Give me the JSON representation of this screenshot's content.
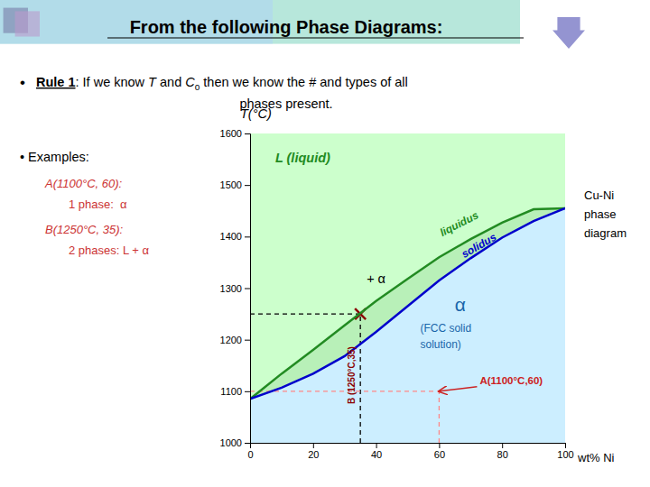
{
  "chart_data": {
    "type": "line",
    "title": "From the following Phase Diagrams:",
    "xlabel": "wt% Ni",
    "ylabel": "T(°C)",
    "xlim": [
      0,
      100
    ],
    "ylim": [
      1000,
      1600
    ],
    "xticks": [
      0,
      20,
      40,
      60,
      80,
      100
    ],
    "yticks": [
      1000,
      1100,
      1200,
      1300,
      1400,
      1500,
      1600
    ],
    "grid": false,
    "series": [
      {
        "name": "liquidus",
        "type": "line",
        "color": "#228B22",
        "x": [
          0,
          10,
          20,
          30,
          40,
          50,
          60,
          70,
          80,
          90,
          100
        ],
        "values": [
          1085,
          1134,
          1180,
          1228,
          1275,
          1318,
          1360,
          1395,
          1427,
          1453,
          1455
        ]
      },
      {
        "name": "solidus",
        "type": "line",
        "color": "#0000cc",
        "x": [
          0,
          10,
          20,
          30,
          40,
          50,
          60,
          70,
          80,
          90,
          100
        ],
        "values": [
          1085,
          1107,
          1134,
          1168,
          1215,
          1265,
          1315,
          1358,
          1398,
          1430,
          1455
        ]
      },
      {
        "name": "B (1250°C,35)",
        "type": "scatter",
        "color": "#8b0000",
        "marker": "x",
        "x": [
          35
        ],
        "values": [
          1250
        ]
      },
      {
        "name": "A(1100°C,60)",
        "type": "scatter",
        "color": "#cc2222",
        "marker": "arrow",
        "x": [
          60
        ],
        "values": [
          1100
        ]
      }
    ],
    "annotations": [
      "•",
      "Rule 1",
      ": If we know ",
      "T",
      " and ",
      "C",
      "o",
      " then we know the # and types of all",
      "phases present.",
      "• Examples:",
      "A(1100°C, 60):",
      "1 phase:  α",
      "B(1250°C, 35):",
      "2 phases: L + α",
      "Cu-Ni\nphase\ndiagram",
      "L (liquid)",
      "+ α",
      "α",
      "(FCC solid\nsolution)"
    ]
  }
}
